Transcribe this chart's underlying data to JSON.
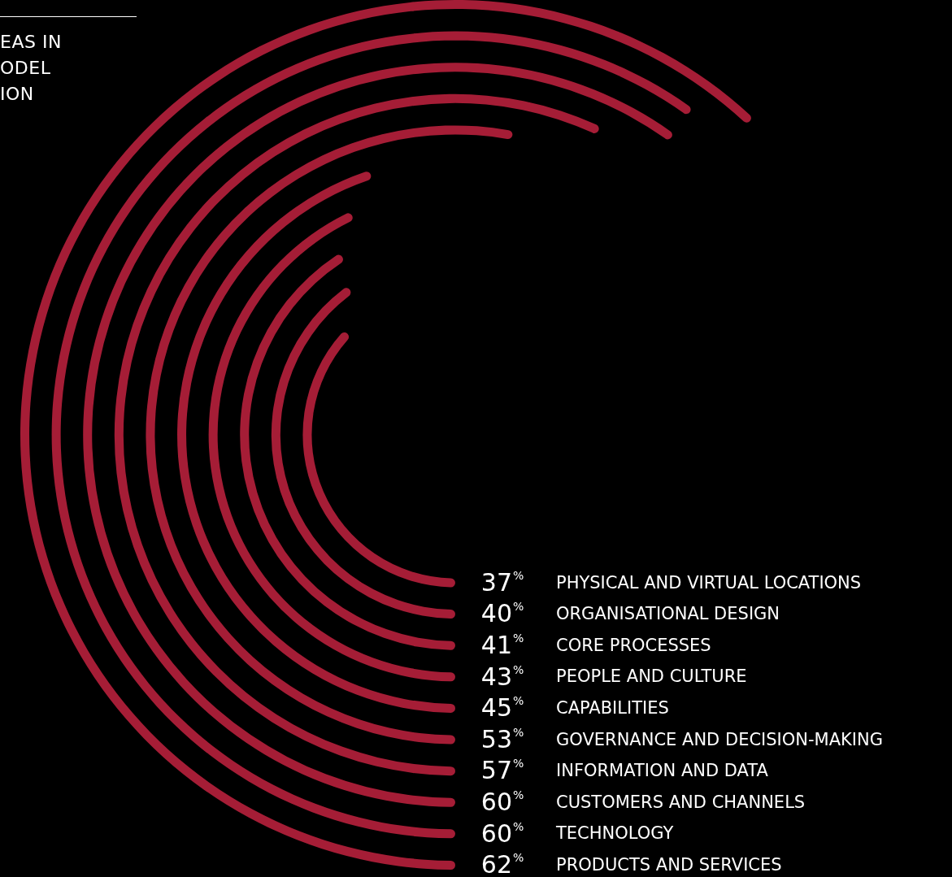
{
  "chart_data": {
    "type": "other",
    "title": "EAS IN\nODEL\nION",
    "categories": [
      "PHYSICAL AND VIRTUAL LOCATIONS",
      "ORGANISATIONAL DESIGN",
      "CORE PROCESSES",
      "PEOPLE AND CULTURE",
      "CAPABILITIES",
      "GOVERNANCE AND DECISION-MAKING",
      "INFORMATION AND DATA",
      "CUSTOMERS AND CHANNELS",
      "TECHNOLOGY",
      "PRODUCTS AND SERVICES"
    ],
    "values": [
      37,
      40,
      41,
      43,
      45,
      53,
      57,
      60,
      60,
      62
    ],
    "value_labels": [
      "37%",
      "40%",
      "41%",
      "43%",
      "45%",
      "53%",
      "57%",
      "60%",
      "60%",
      "62%"
    ],
    "color": "#a51d36"
  }
}
